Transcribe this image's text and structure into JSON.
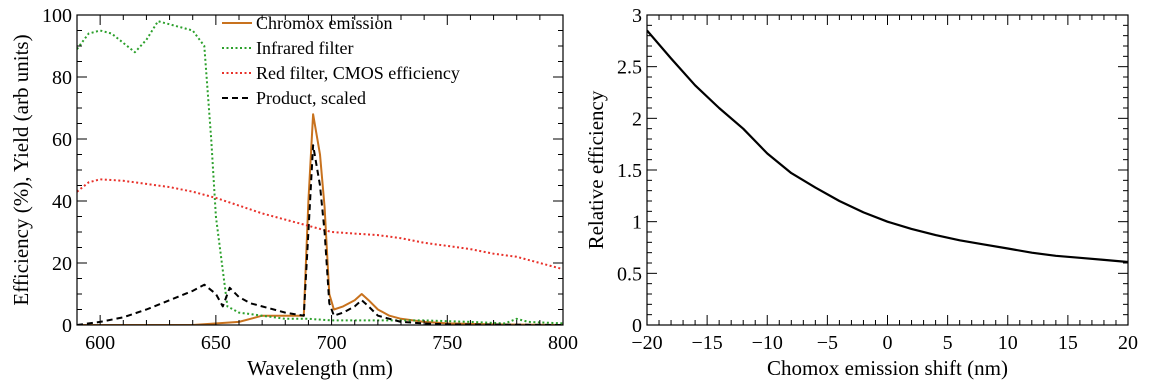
{
  "chart_data": [
    {
      "type": "line",
      "xlabel": "Wavelength (nm)",
      "ylabel": "Efficiency (%),  Yield (arb units)",
      "xlim": [
        590,
        800
      ],
      "ylim": [
        0,
        100
      ],
      "xticks": [
        600,
        650,
        700,
        750,
        800
      ],
      "yticks": [
        0,
        20,
        40,
        60,
        80,
        100
      ],
      "legend_position": "top-right",
      "series": [
        {
          "name": "Chromox emission",
          "color": "#c8721e",
          "style": "solid",
          "x": [
            590,
            600,
            620,
            640,
            660,
            665,
            670,
            680,
            688,
            690,
            692,
            695,
            697,
            699,
            701,
            705,
            710,
            713,
            716,
            720,
            725,
            730,
            740,
            750,
            770,
            800
          ],
          "y": [
            0,
            0,
            0,
            0,
            1,
            2,
            3,
            3,
            3,
            40,
            68,
            55,
            38,
            10,
            5,
            6,
            8,
            10,
            8,
            5,
            3,
            2,
            1,
            0.5,
            0.2,
            0
          ]
        },
        {
          "name": "Infrared filter",
          "color": "#2ca02c",
          "style": "dotted",
          "x": [
            590,
            595,
            600,
            605,
            610,
            615,
            620,
            625,
            630,
            635,
            640,
            645,
            648,
            650,
            655,
            660,
            665,
            670,
            680,
            690,
            700,
            720,
            740,
            760,
            775,
            780,
            785,
            800
          ],
          "y": [
            89,
            94,
            95,
            94,
            91,
            88,
            92,
            98,
            97,
            96,
            95,
            90,
            60,
            35,
            6,
            4,
            3.5,
            3,
            2,
            2,
            1.5,
            1.5,
            1.5,
            1,
            0.5,
            2,
            1,
            0.5
          ]
        },
        {
          "name": "Red filter, CMOS efficiency",
          "color": "#e8312a",
          "style": "dotted",
          "x": [
            590,
            595,
            600,
            610,
            620,
            630,
            640,
            650,
            660,
            670,
            680,
            690,
            700,
            710,
            720,
            730,
            740,
            750,
            760,
            770,
            780,
            790,
            800
          ],
          "y": [
            43,
            46,
            47,
            46.5,
            45.5,
            44.5,
            43,
            41,
            38.5,
            36,
            34,
            32,
            30,
            29.5,
            29,
            28,
            26.5,
            25.5,
            24.5,
            23,
            22,
            20,
            18
          ]
        },
        {
          "name": "Product, scaled",
          "color": "#000000",
          "style": "dashed",
          "x": [
            590,
            600,
            610,
            620,
            630,
            640,
            645,
            650,
            653,
            656,
            660,
            665,
            670,
            680,
            688,
            690,
            692,
            695,
            697,
            699,
            701,
            705,
            710,
            713,
            716,
            720,
            725,
            730,
            740,
            750,
            800
          ],
          "y": [
            0,
            1,
            2.5,
            5,
            8,
            11,
            13,
            10,
            6,
            12,
            9,
            7,
            6,
            4,
            3,
            30,
            58,
            45,
            30,
            7,
            3,
            4,
            6,
            8,
            6,
            3,
            2,
            1,
            0.5,
            0.2,
            0
          ]
        }
      ]
    },
    {
      "type": "line",
      "xlabel": "Chomox emission shift (nm)",
      "ylabel": "Relative efficiency",
      "xlim": [
        -20,
        20
      ],
      "ylim": [
        0,
        3
      ],
      "xticks": [
        -20,
        -15,
        -10,
        -5,
        0,
        5,
        10,
        15,
        20
      ],
      "yticks": [
        0,
        0.5,
        1,
        1.5,
        2,
        2.5,
        3
      ],
      "series": [
        {
          "color": "#000000",
          "style": "solid",
          "x": [
            -20,
            -18,
            -16,
            -14,
            -12,
            -10,
            -8,
            -6,
            -4,
            -2,
            0,
            2,
            4,
            6,
            8,
            10,
            12,
            14,
            16,
            18,
            20
          ],
          "y": [
            2.85,
            2.58,
            2.32,
            2.1,
            1.9,
            1.66,
            1.47,
            1.33,
            1.2,
            1.09,
            1.0,
            0.93,
            0.87,
            0.82,
            0.78,
            0.74,
            0.7,
            0.67,
            0.65,
            0.63,
            0.61
          ]
        }
      ]
    }
  ]
}
